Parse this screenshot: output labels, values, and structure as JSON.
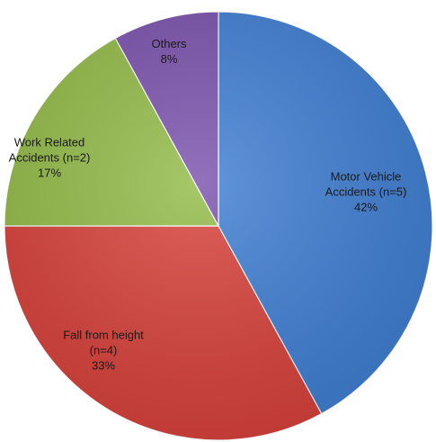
{
  "chart_data": {
    "type": "pie",
    "slices": [
      {
        "label_lines": [
          "Motor Vehicle",
          "Accidents (n=5)"
        ],
        "pct": "42%",
        "value": 42,
        "color": "#3f7fd4"
      },
      {
        "label_lines": [
          "Fall from height",
          "(n=4)"
        ],
        "pct": "33%",
        "value": 33,
        "color": "#d9413a"
      },
      {
        "label_lines": [
          "Work Related",
          "Accidents (n=2)"
        ],
        "pct": "17%",
        "value": 17,
        "color": "#93bb47"
      },
      {
        "label_lines": [
          "Others"
        ],
        "pct": "8%",
        "value": 8,
        "color": "#7b52ad"
      }
    ]
  }
}
